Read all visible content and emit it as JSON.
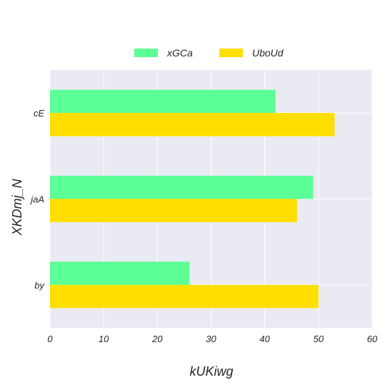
{
  "chart_data": {
    "type": "bar",
    "orientation": "horizontal",
    "categories": [
      "by",
      "jaA",
      "cE"
    ],
    "series": [
      {
        "name": "xGCa",
        "values": [
          26,
          49,
          42
        ],
        "color": "#5cff95"
      },
      {
        "name": "UboUd",
        "values": [
          50,
          46,
          53
        ],
        "color": "#ffde00"
      }
    ],
    "xlabel": "kUKiwg",
    "ylabel": "XKDmj_N",
    "xlim": [
      0,
      60
    ],
    "xticks": [
      "0",
      "10",
      "20",
      "30",
      "40",
      "50",
      "60"
    ],
    "grid": true,
    "legend": "top-center",
    "background": "#eaeaf2"
  }
}
